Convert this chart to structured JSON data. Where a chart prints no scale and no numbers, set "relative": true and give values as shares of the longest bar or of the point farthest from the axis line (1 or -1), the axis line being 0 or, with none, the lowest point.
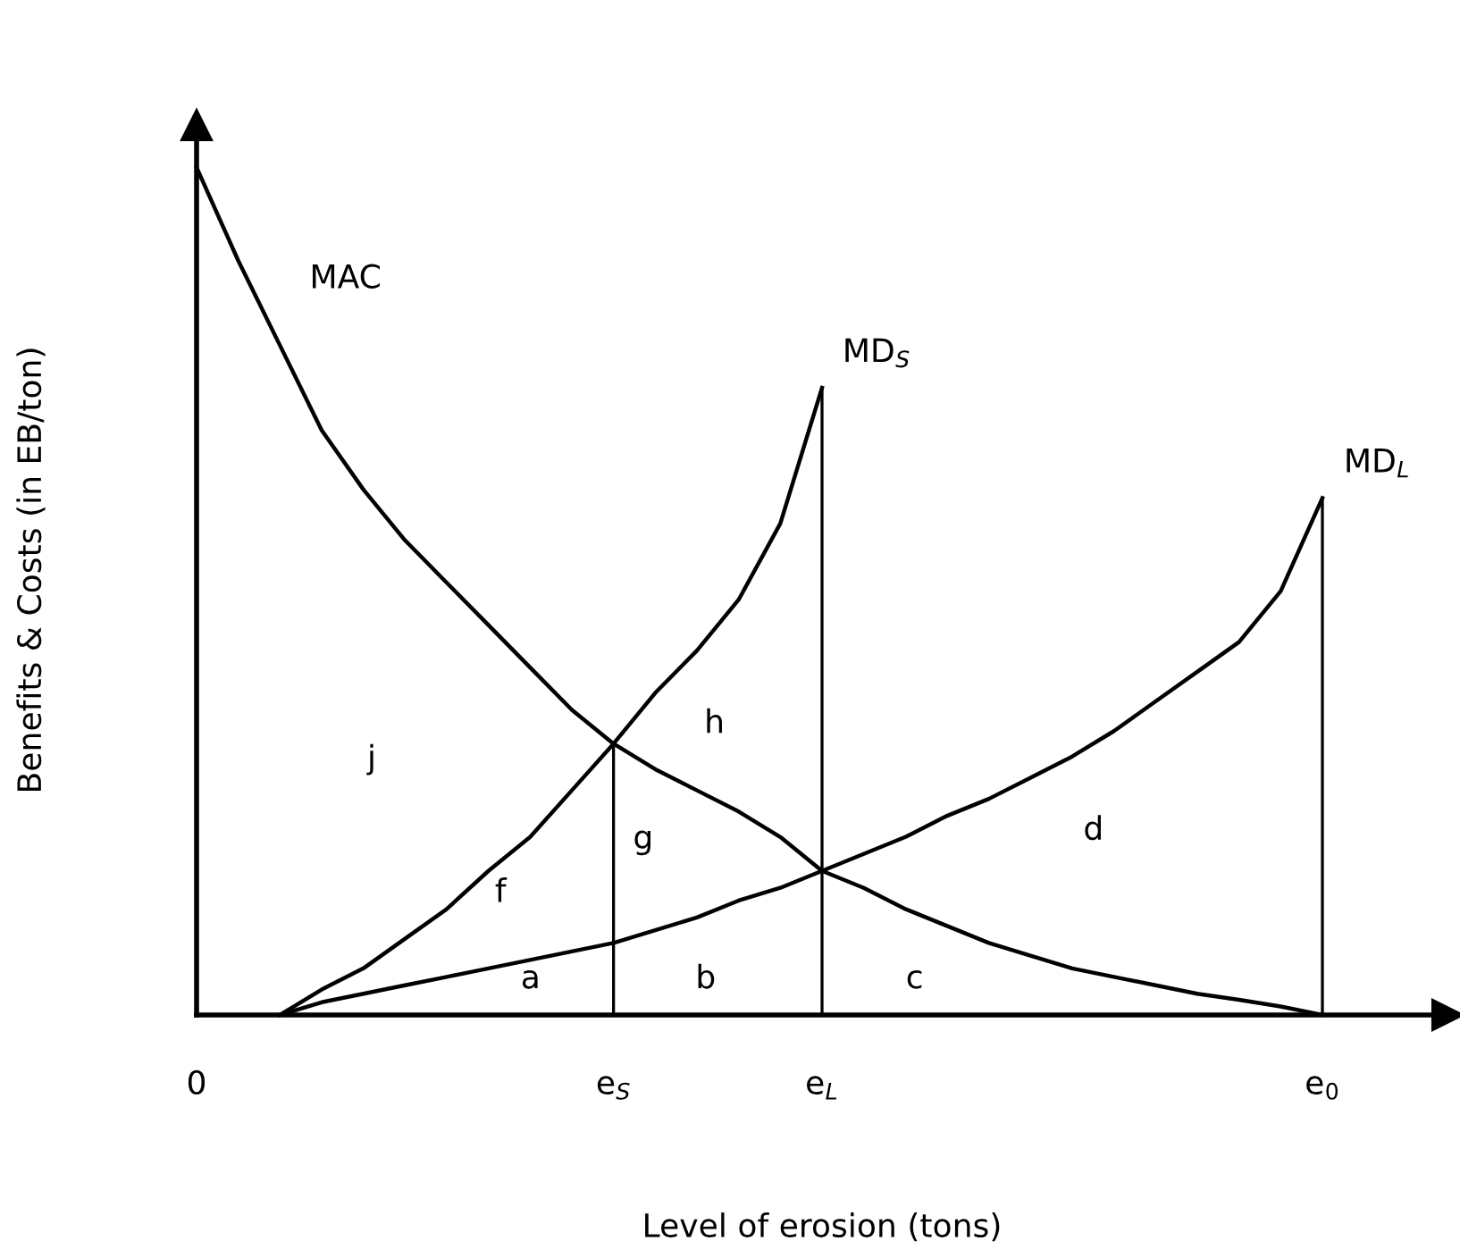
{
  "chart_data": {
    "type": "line",
    "relative": true,
    "xlabel": "Level of erosion (tons)",
    "ylabel": "Benefits & Costs (in EB/ton)",
    "categories": [
      "0",
      null,
      null,
      null,
      null,
      null,
      null,
      null,
      null,
      null,
      "e$_{S}$",
      null,
      null,
      null,
      null,
      "e$_{L}$",
      null,
      null,
      null,
      null,
      null,
      null,
      null,
      null,
      null,
      null,
      null,
      "e$_{0}$",
      null,
      null,
      null
    ],
    "grid": false,
    "legend": false,
    "marker": "none",
    "line_style": "solid",
    "series": [
      {
        "name": "MAC",
        "color": "#000000",
        "values": [
          1.0,
          0.89,
          0.79,
          0.69,
          0.62,
          0.56,
          0.51,
          0.46,
          0.41,
          0.36,
          0.32,
          0.29,
          0.265,
          0.24,
          0.21,
          0.17,
          0.15,
          0.125,
          0.105,
          0.085,
          0.07,
          0.055,
          0.045,
          0.035,
          0.025,
          0.018,
          0.01,
          0.0,
          null,
          null,
          null
        ]
      },
      {
        "name": "MD$_{S}$",
        "color": "#000000",
        "values": [
          null,
          null,
          0.0,
          0.03,
          0.055,
          0.09,
          0.125,
          0.17,
          0.21,
          0.265,
          0.32,
          0.38,
          0.43,
          0.49,
          0.58,
          0.74,
          null,
          null,
          null,
          null,
          null,
          null,
          null,
          null,
          null,
          null,
          null,
          null,
          null,
          null,
          null
        ]
      },
      {
        "name": "MD$_{L}$",
        "color": "#000000",
        "values": [
          null,
          null,
          0.0,
          0.015,
          0.025,
          0.035,
          0.045,
          0.055,
          0.065,
          0.075,
          0.085,
          0.1,
          0.115,
          0.135,
          0.15,
          0.17,
          0.19,
          0.21,
          0.235,
          0.255,
          0.28,
          0.305,
          0.335,
          0.37,
          0.405,
          0.44,
          0.5,
          0.61,
          null,
          null,
          null
        ]
      },
      {
        "type": "bar",
        "color": "#000000",
        "values": [
          null,
          null,
          null,
          null,
          null,
          null,
          null,
          null,
          null,
          null,
          0.32,
          null,
          null,
          null,
          null,
          0.74,
          null,
          null,
          null,
          null,
          null,
          null,
          null,
          null,
          null,
          null,
          null,
          0.61,
          null,
          null,
          null
        ]
      }
    ],
    "annotations": [
      "a",
      "b",
      "c",
      "d",
      "f",
      "g",
      "h",
      "j"
    ]
  }
}
